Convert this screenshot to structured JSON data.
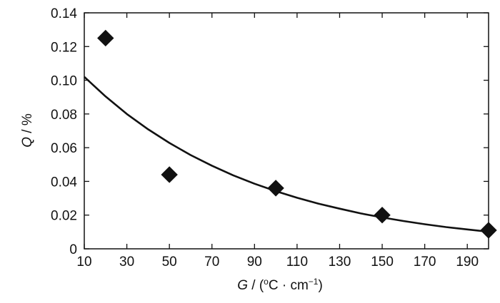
{
  "chart_data": {
    "type": "scatter",
    "xlabel_var": "G",
    "xlabel_rest": " / (",
    "xlabel_sup_o": "o",
    "xlabel_unit": "C · cm",
    "xlabel_sup": "−1",
    "xlabel_close": ")",
    "ylabel_var": "Q",
    "ylabel_rest": " / %",
    "xlim": [
      10,
      200
    ],
    "ylim": [
      0,
      0.14
    ],
    "x_ticks": [
      10,
      30,
      50,
      70,
      90,
      110,
      130,
      150,
      170,
      190
    ],
    "y_ticks": [
      0,
      0.02,
      0.04,
      0.06,
      0.08,
      0.1,
      0.12,
      0.14
    ],
    "y_tick_labels": [
      "0",
      "0.02",
      "0.04",
      "0.06",
      "0.08",
      "0.10",
      "0.12",
      "0.14"
    ],
    "grid": false,
    "series": [
      {
        "type": "scatter",
        "marker": "diamond",
        "x": [
          20,
          50,
          100,
          150,
          200
        ],
        "y": [
          0.125,
          0.044,
          0.036,
          0.02,
          0.011
        ]
      },
      {
        "type": "line",
        "fit": "exponential",
        "x": [
          10,
          20,
          30,
          40,
          50,
          60,
          70,
          80,
          90,
          100,
          110,
          120,
          130,
          140,
          150,
          160,
          170,
          180,
          190,
          200
        ],
        "y": [
          0.102,
          0.0904,
          0.08,
          0.0709,
          0.0628,
          0.0556,
          0.0493,
          0.0436,
          0.0386,
          0.0342,
          0.0303,
          0.0268,
          0.0238,
          0.021,
          0.0186,
          0.0165,
          0.0146,
          0.0129,
          0.0115,
          0.0101
        ]
      }
    ]
  },
  "colors": {
    "ink": "#111111",
    "background": "#ffffff"
  }
}
